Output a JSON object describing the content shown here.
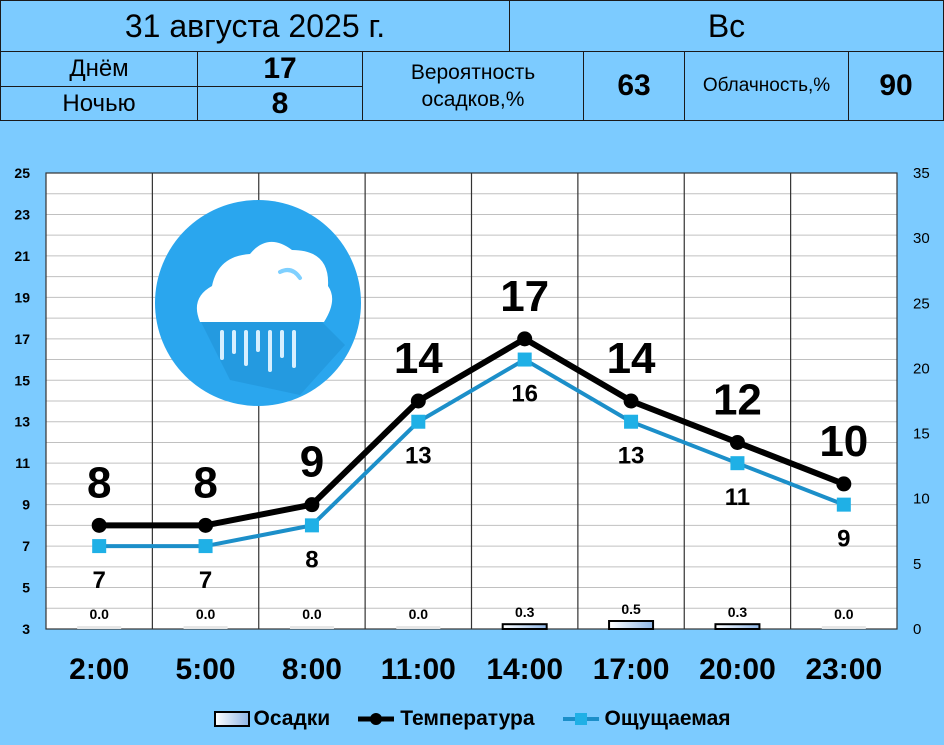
{
  "header": {
    "date": "31 августа 2025 г.",
    "weekday": "Вс",
    "day_label": "Днём",
    "day_value": "17",
    "night_label": "Ночью",
    "night_value": "8",
    "precip_label_line1": "Вероятность",
    "precip_label_line2": "осадков,%",
    "precip_value": "63",
    "cloud_label": "Облачность,%",
    "cloud_value": "90"
  },
  "icon": "rain-cloud-icon",
  "colors": {
    "background": "#7ccbff",
    "temperature": "#000000",
    "feels_like": "#1c8fc9",
    "marker_feels": "#1fb0e6",
    "icon_circle": "#2aa6ee"
  },
  "chart_data": {
    "type": "line",
    "categories": [
      "2:00",
      "5:00",
      "8:00",
      "11:00",
      "14:00",
      "17:00",
      "20:00",
      "23:00"
    ],
    "series": [
      {
        "name": "Осадки",
        "type": "bar",
        "axis": "right",
        "values": [
          0.0,
          0.0,
          0.0,
          0.0,
          0.3,
          0.5,
          0.3,
          0.0
        ],
        "labels": [
          "0.0",
          "0.0",
          "0.0",
          "0.0",
          "0.3",
          "0.5",
          "0.3",
          "0.0"
        ]
      },
      {
        "name": "Температура",
        "type": "line",
        "axis": "left",
        "values": [
          8,
          8,
          9,
          14,
          17,
          14,
          12,
          10
        ],
        "labels": [
          "8",
          "8",
          "9",
          "14",
          "17",
          "14",
          "12",
          "10"
        ]
      },
      {
        "name": "Ощущаемая",
        "type": "line",
        "axis": "left",
        "values": [
          7,
          7,
          8,
          13,
          16,
          13,
          11,
          9
        ],
        "labels": [
          "7",
          "7",
          "8",
          "13",
          "16",
          "13",
          "11",
          "9"
        ]
      }
    ],
    "y_left": {
      "min": 3,
      "max": 25,
      "ticks": [
        "3",
        "5",
        "7",
        "9",
        "11",
        "13",
        "15",
        "17",
        "19",
        "21",
        "23",
        "25"
      ]
    },
    "y_right": {
      "min": 0,
      "max": 35,
      "ticks": [
        "0",
        "5",
        "10",
        "15",
        "20",
        "25",
        "30",
        "35"
      ]
    },
    "grid": true,
    "legend": "bottom"
  }
}
